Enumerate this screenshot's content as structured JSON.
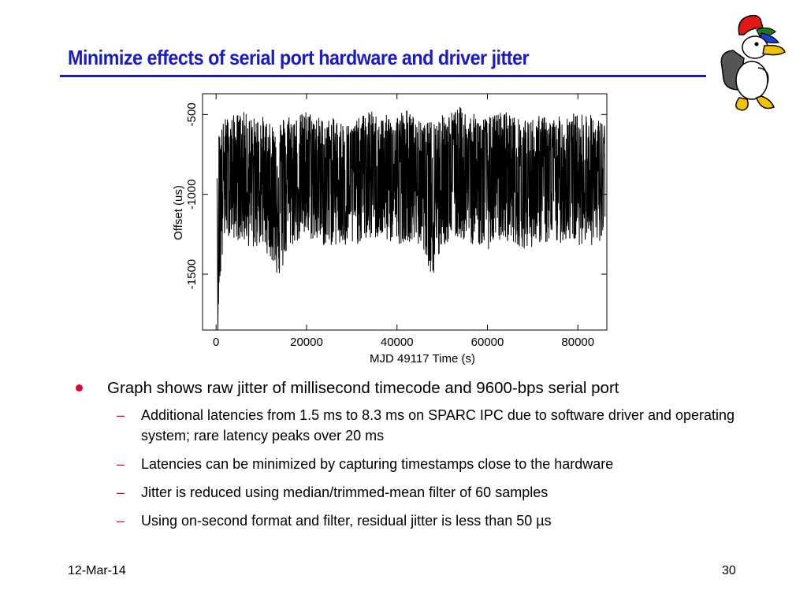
{
  "slide": {
    "title": "Minimize effects of serial port hardware and driver jitter",
    "bullet": {
      "text": "Graph shows raw jitter of millisecond timecode and 9600-bps serial port",
      "sub_items": [
        {
          "text": "Additional latencies from 1.5 ms to 8.3 ms on SPARC IPC due to software driver and operating system; rare latency peaks over 20 ms"
        },
        {
          "text": "Latencies can be minimized by capturing timestamps close to the hardware"
        },
        {
          "text": "Jitter is reduced using median/trimmed-mean filter of 60 samples"
        },
        {
          "text": "Using on-second format and filter, residual jitter is less than 50 µs"
        }
      ]
    },
    "bullet_color": "#e0003c",
    "title_color": "#1a1acc"
  },
  "footer": {
    "date": "12-Mar-14",
    "page": "30"
  },
  "mascot": {
    "icon": "duck-mascot-icon"
  },
  "chart_data": {
    "type": "line",
    "xlabel": "MJD 49117 Time (s)",
    "ylabel": "Offset (us)",
    "xlim": [
      -3000,
      86400
    ],
    "ylim": [
      -1850,
      -370
    ],
    "xticks": [
      0,
      20000,
      40000,
      60000,
      80000
    ],
    "yticks": [
      -500,
      -1000,
      -1500
    ],
    "grid": false,
    "series": [
      {
        "x": [
          0,
          2000,
          4000,
          6000,
          8000,
          10000,
          12000,
          14000,
          16000,
          18000,
          20000,
          22000,
          24000,
          26000,
          28000,
          30000,
          32000,
          34000,
          36000,
          38000,
          40000,
          42000,
          44000,
          46000,
          48000,
          50000,
          52000,
          54000,
          56000,
          58000,
          60000,
          62000,
          64000,
          66000,
          68000,
          70000,
          72000,
          74000,
          76000,
          78000,
          80000,
          82000,
          84000,
          86000
        ],
        "y": [
          -950,
          -900,
          -920,
          -880,
          -930,
          -910,
          -960,
          -940,
          -900,
          -920,
          -880,
          -900,
          -930,
          -910,
          -920,
          -940,
          -900,
          -890,
          -930,
          -920,
          -900,
          -880,
          -910,
          -950,
          -930,
          -900,
          -880,
          -870,
          -900,
          -920,
          -930,
          -900,
          -880,
          -910,
          -940,
          -920,
          -900,
          -930,
          -910,
          -890,
          -920,
          -900,
          -940,
          -930
        ],
        "envelope_upper": [
          -650,
          -520,
          -500,
          -480,
          -520,
          -500,
          -560,
          -530,
          -490,
          -510,
          -470,
          -500,
          -530,
          -520,
          -540,
          -560,
          -510,
          -470,
          -510,
          -500,
          -490,
          -460,
          -520,
          -560,
          -530,
          -500,
          -480,
          -450,
          -490,
          -500,
          -520,
          -490,
          -470,
          -510,
          -540,
          -520,
          -500,
          -530,
          -510,
          -470,
          -500,
          -480,
          -520,
          -540
        ],
        "envelope_lower": [
          -1850,
          -1250,
          -1280,
          -1300,
          -1350,
          -1320,
          -1400,
          -1550,
          -1350,
          -1300,
          -1280,
          -1300,
          -1330,
          -1320,
          -1350,
          -1340,
          -1300,
          -1290,
          -1280,
          -1300,
          -1320,
          -1290,
          -1310,
          -1350,
          -1560,
          -1330,
          -1300,
          -1280,
          -1310,
          -1320,
          -1350,
          -1300,
          -1290,
          -1310,
          -1340,
          -1330,
          -1300,
          -1330,
          -1310,
          -1290,
          -1320,
          -1300,
          -1340,
          -1330
        ]
      }
    ]
  }
}
